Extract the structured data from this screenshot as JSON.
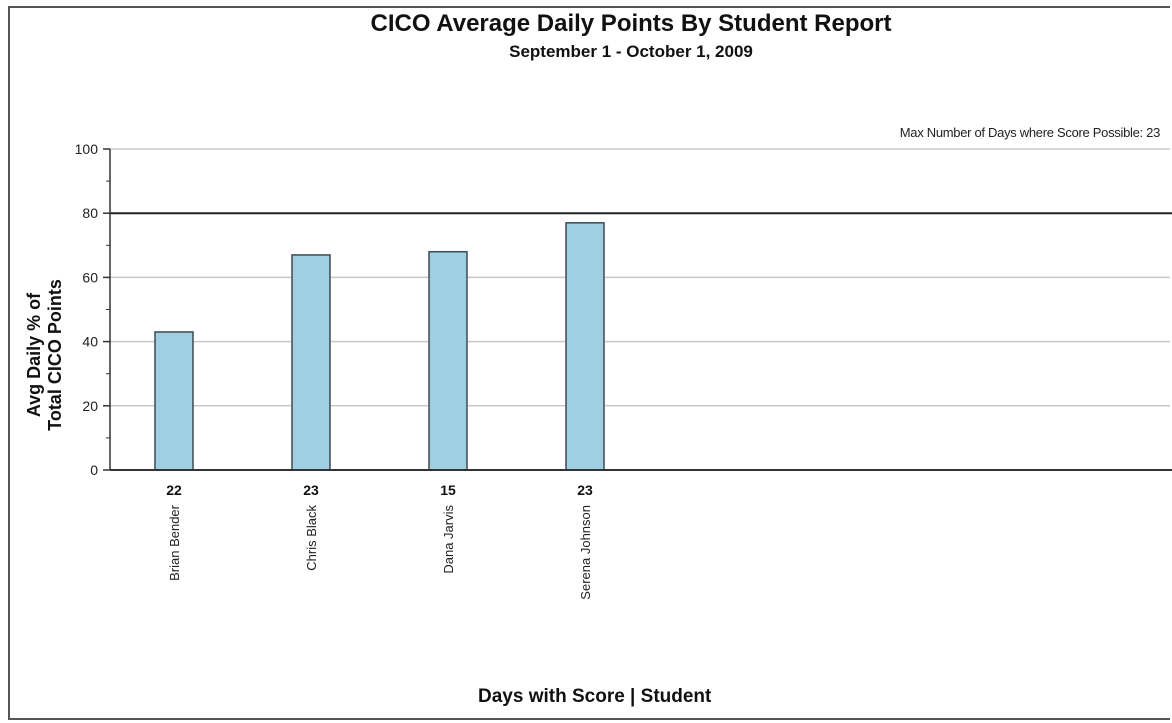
{
  "note": "Max Number of Days where Score Possible: 23",
  "chart_data": {
    "type": "bar",
    "title": "CICO Average Daily Points By Student Report",
    "subtitle": "September 1 - October 1, 2009",
    "ylabel_line1": "Avg Daily % of",
    "ylabel_line2": "Total CICO Points",
    "xlabel": "Days with Score | Student",
    "ylim": [
      0,
      100
    ],
    "yticks": [
      0,
      20,
      40,
      60,
      80,
      100
    ],
    "grid": true,
    "reference_line": 80,
    "categories": [
      "Brian Bender",
      "Chris Black",
      "Dana Jarvis",
      "Serena Johnson"
    ],
    "days": [
      "22",
      "23",
      "15",
      "23"
    ],
    "values": [
      43,
      67,
      68,
      77
    ],
    "bar_color": "#9fcfe3",
    "bar_stroke": "#3d4a52"
  }
}
